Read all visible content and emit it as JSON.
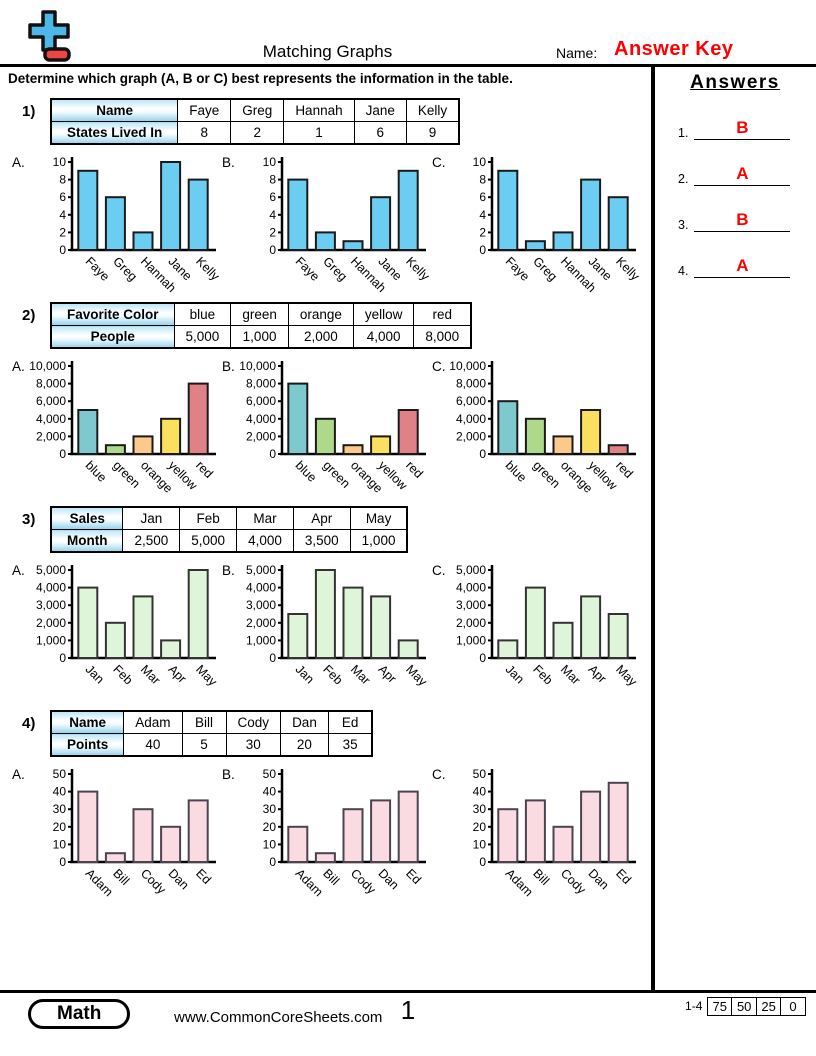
{
  "header": {
    "title": "Matching Graphs",
    "name_label": "Name:",
    "name_value": "Answer Key",
    "instruction": "Determine which graph (A, B or C) best represents the information in the table.",
    "answers_title": "Answers"
  },
  "colors": {
    "accent_red": "#ff0000",
    "logo_blue": "#4db8e8",
    "logo_red": "#ef4444",
    "p1_bar": "#6ccdf2",
    "p2_bars": [
      "#7ec9ce",
      "#aed98b",
      "#fbca8b",
      "#fbdf5e",
      "#df8185"
    ],
    "p3_bar": "#def5d9",
    "p4_bar": "#fadbe1"
  },
  "problems": [
    {
      "num": "1)",
      "table": {
        "rows": [
          {
            "header": "Name",
            "cells": [
              "Faye",
              "Greg",
              "Hannah",
              "Jane",
              "Kelly"
            ]
          },
          {
            "header": "States Lived In",
            "cells": [
              "8",
              "2",
              "1",
              "6",
              "9"
            ]
          }
        ]
      },
      "axis": {
        "ymax": 10,
        "ticks": [
          "0",
          "2",
          "4",
          "6",
          "8",
          "10"
        ],
        "categories": [
          "Faye",
          "Greg",
          "Hannah",
          "Jane",
          "Kelly"
        ]
      },
      "style": {
        "fill": "#6ccdf2",
        "stroke": "#1a1a1a"
      },
      "charts": [
        {
          "label": "A.",
          "values": [
            9,
            6,
            2,
            10,
            8
          ]
        },
        {
          "label": "B.",
          "values": [
            8,
            2,
            1,
            6,
            9
          ]
        },
        {
          "label": "C.",
          "values": [
            9,
            1,
            2,
            8,
            6
          ]
        }
      ]
    },
    {
      "num": "2)",
      "table": {
        "rows": [
          {
            "header": "Favorite Color",
            "cells": [
              "blue",
              "green",
              "orange",
              "yellow",
              "red"
            ]
          },
          {
            "header": "People",
            "cells": [
              "5,000",
              "1,000",
              "2,000",
              "4,000",
              "8,000"
            ]
          }
        ]
      },
      "axis": {
        "ymax": 10000,
        "ticks": [
          "0",
          "2,000",
          "4,000",
          "6,000",
          "8,000",
          "10,000"
        ],
        "categories": [
          "blue",
          "green",
          "orange",
          "yellow",
          "red"
        ]
      },
      "style": {
        "fills": [
          "#7ec9ce",
          "#aed98b",
          "#fbca8b",
          "#fbdf5e",
          "#df8185"
        ],
        "stroke": "#1a1a1a"
      },
      "charts": [
        {
          "label": "A.",
          "values": [
            5000,
            1000,
            2000,
            4000,
            8000
          ]
        },
        {
          "label": "B.",
          "values": [
            8000,
            4000,
            1000,
            2000,
            5000
          ]
        },
        {
          "label": "C.",
          "values": [
            6000,
            4000,
            2000,
            5000,
            1000
          ]
        }
      ]
    },
    {
      "num": "3)",
      "table": {
        "rows": [
          {
            "header": "Sales",
            "cells": [
              "Jan",
              "Feb",
              "Mar",
              "Apr",
              "May"
            ]
          },
          {
            "header": "Month",
            "cells": [
              "2,500",
              "5,000",
              "4,000",
              "3,500",
              "1,000"
            ]
          }
        ]
      },
      "axis": {
        "ymax": 5000,
        "ticks": [
          "0",
          "1,000",
          "2,000",
          "3,000",
          "4,000",
          "5,000"
        ],
        "categories": [
          "Jan",
          "Feb",
          "Mar",
          "Apr",
          "May"
        ]
      },
      "style": {
        "fill": "#def5d9",
        "stroke": "#333333"
      },
      "charts": [
        {
          "label": "A.",
          "values": [
            4000,
            2000,
            3500,
            1000,
            5000
          ]
        },
        {
          "label": "B.",
          "values": [
            2500,
            5000,
            4000,
            3500,
            1000
          ]
        },
        {
          "label": "C.",
          "values": [
            1000,
            4000,
            2000,
            3500,
            2500
          ]
        }
      ]
    },
    {
      "num": "4)",
      "table": {
        "rows": [
          {
            "header": "Name",
            "cells": [
              "Adam",
              "Bill",
              "Cody",
              "Dan",
              "Ed"
            ]
          },
          {
            "header": "Points",
            "cells": [
              "40",
              "5",
              "30",
              "20",
              "35"
            ]
          }
        ]
      },
      "axis": {
        "ymax": 50,
        "ticks": [
          "0",
          "10",
          "20",
          "30",
          "40",
          "50"
        ],
        "categories": [
          "Adam",
          "Bill",
          "Cody",
          "Dan",
          "Ed"
        ]
      },
      "style": {
        "fill": "#fadbe1",
        "stroke": "#4d4350"
      },
      "charts": [
        {
          "label": "A.",
          "values": [
            40,
            5,
            30,
            20,
            35
          ]
        },
        {
          "label": "B.",
          "values": [
            20,
            5,
            30,
            35,
            40
          ]
        },
        {
          "label": "C.",
          "values": [
            30,
            35,
            20,
            40,
            45
          ]
        }
      ]
    }
  ],
  "answers": [
    {
      "num": "1.",
      "value": "B"
    },
    {
      "num": "2.",
      "value": "A"
    },
    {
      "num": "3.",
      "value": "B"
    },
    {
      "num": "4.",
      "value": "A"
    }
  ],
  "footer": {
    "subject": "Math",
    "website": "www.CommonCoreSheets.com",
    "page": "1",
    "range": "1-4",
    "scores": [
      "75",
      "50",
      "25",
      "0"
    ]
  }
}
